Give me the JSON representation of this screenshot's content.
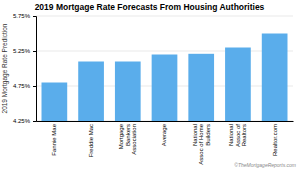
{
  "chart_data": {
    "type": "bar",
    "title": "2019 Mortgage Rate Forecasts From Housing Authorities",
    "ylabel": "2019 Mortgage Rate Prediction",
    "categories": [
      "Fannie Mae",
      "Freddie Mac",
      "Mortgage\nBankers\nAssociation",
      "Average",
      "National\nAssoc of Home\nBuilders",
      "National\nAssoc of\nRealtors",
      "Realtor.com"
    ],
    "values": [
      4.8,
      5.1,
      5.1,
      5.2,
      5.21,
      5.3,
      5.5
    ],
    "color": "#5aadeb",
    "ylim": [
      4.25,
      5.75
    ],
    "yticks": [
      {
        "value": 4.25,
        "label": "4.25%"
      },
      {
        "value": 4.75,
        "label": "4.75%"
      },
      {
        "value": 5.25,
        "label": "5.25%"
      },
      {
        "value": 5.75,
        "label": "5.75%"
      }
    ],
    "grid": true,
    "annotations": [
      "©TheMortgageReports.com"
    ]
  }
}
